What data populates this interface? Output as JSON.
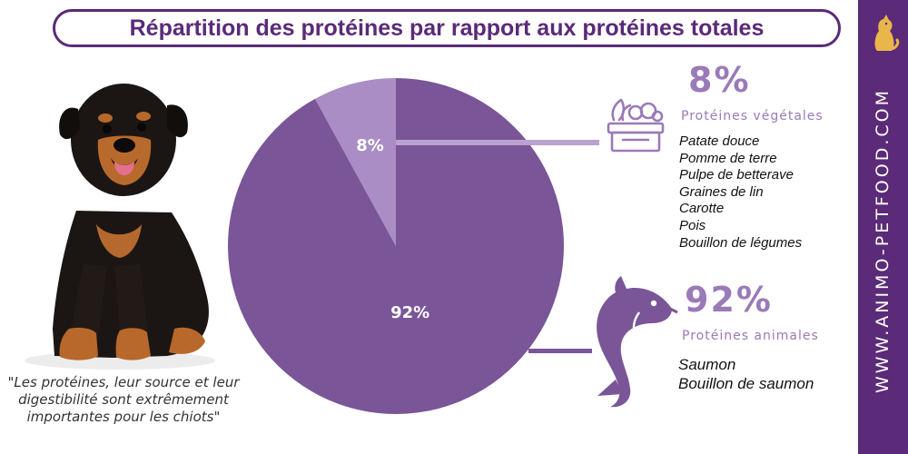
{
  "title": "Répartition des protéines par rapport aux protéines totales",
  "sidebar": {
    "site": "WWW.ANIMO-PETFOOD.COM",
    "logo_icon": "sitting-dog-logo-icon"
  },
  "puppy_icon": "rottweiler-puppy-photo",
  "quote": "\"Les protéines, leur source et leur digestibilité sont extrêmement importantes pour les chiots\"",
  "colors": {
    "brand": "#5b2a78",
    "animal_slice": "#7a5598",
    "vegetable_slice": "#a98dc4",
    "label_purple": "#9b7ab8"
  },
  "chart_data": {
    "type": "pie",
    "title": "Répartition des protéines par rapport aux protéines totales",
    "slices": [
      {
        "label": "Protéines végétales",
        "value": 8,
        "display": "8%",
        "color": "#a98dc4"
      },
      {
        "label": "Protéines animales",
        "value": 92,
        "display": "92%",
        "color": "#7a5598"
      }
    ]
  },
  "vegetable": {
    "percent": "8%",
    "label": "Protéines végétales",
    "icon": "vegetable-crate-icon",
    "ingredients": [
      "Patate douce",
      "Pomme de terre",
      "Pulpe de betterave",
      "Graines de lin",
      "Carotte",
      "Pois",
      "Bouillon de légumes"
    ]
  },
  "animal": {
    "percent": "92%",
    "label": "Protéines animales",
    "icon": "fish-icon",
    "ingredients": [
      "Saumon",
      "Bouillon de saumon"
    ]
  }
}
